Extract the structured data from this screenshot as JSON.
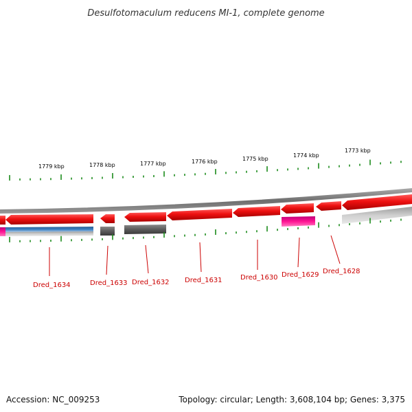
{
  "title": "Desulfotomaculum reducens MI-1, complete genome",
  "footer": {
    "accession": "Accession: NC_009253",
    "summary": "Topology: circular; Length: 3,608,104 bp; Genes: 3,375"
  },
  "colors": {
    "gene_red": "#ee1111",
    "gene_gray": "#666666",
    "gene_magenta": "#ff1493",
    "gene_blue": "#3a7fc0",
    "backbone": "#7a7a7a",
    "tick_green": "#1a8a1a",
    "label_red": "#cc0000"
  },
  "kbp_labels": [
    "1779 kbp",
    "1778 kbp",
    "1777 kbp",
    "1776 kbp",
    "1775 kbp",
    "1774 kbp",
    "1773 kbp"
  ],
  "genes": [
    "Dred_1634",
    "Dred_1633",
    "Dred_1632",
    "Dred_1631",
    "Dred_1630",
    "Dred_1629",
    "Dred_1628"
  ]
}
